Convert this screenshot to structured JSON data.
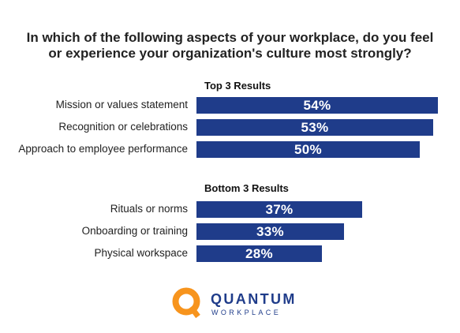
{
  "chart_data": {
    "type": "bar",
    "orientation": "horizontal",
    "title": "In which of the following aspects of your workplace, do you feel or experience your organization's culture most strongly?",
    "title_lines": [
      "In which of the following aspects of your workplace, do you feel",
      "or experience your organization's culture most strongly?"
    ],
    "groups": [
      {
        "name": "Top 3 Results",
        "categories": [
          "Mission or values statement",
          "Recognition or celebrations",
          "Approach to employee performance"
        ],
        "values": [
          54,
          53,
          50
        ],
        "labels": [
          "54%",
          "53%",
          "50%"
        ]
      },
      {
        "name": "Bottom 3 Results",
        "categories": [
          "Rituals or norms",
          "Onboarding or training",
          "Physical workspace"
        ],
        "values": [
          37,
          33,
          28
        ],
        "labels": [
          "37%",
          "33%",
          "28%"
        ]
      }
    ],
    "bar_color": "#1f3c8a",
    "value_label_color": "#ffffff",
    "xlim": [
      0,
      54
    ],
    "grid": false,
    "legend": "none"
  },
  "logo": {
    "word1": "QUANTUM",
    "word2": "WORKPLACE",
    "icon": "quantum-q-icon",
    "ring_color": "#f7941d",
    "text_color": "#1f3c8a"
  }
}
